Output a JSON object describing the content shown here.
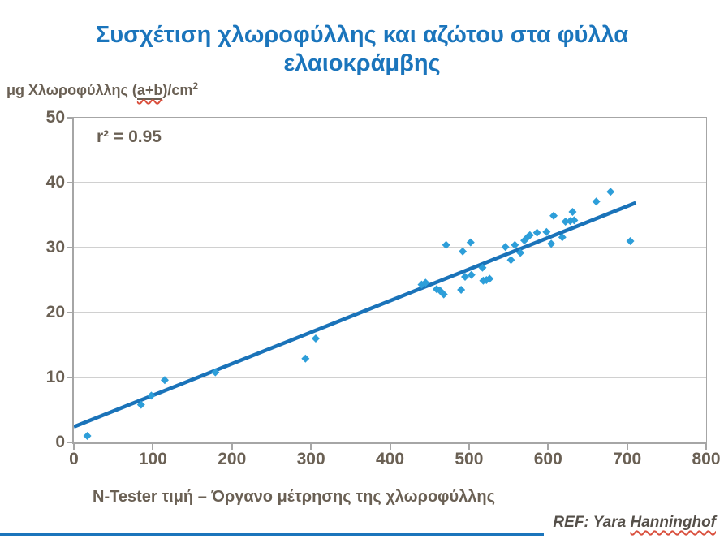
{
  "title": {
    "line1": "Συσχέτιση χλωροφύλλης και αζώτου στα φύλλα",
    "line2": "ελαιοκράμβης"
  },
  "y_axis_unit": {
    "prefix": "μg Χλωροφύλλης (",
    "underlined": "a+b",
    "suffix": ")/cm",
    "superscript": "2"
  },
  "annotation": {
    "r_squared": "r² = 0.95"
  },
  "x_axis_title": "N-Tester τιμή – Όργανο μέτρησης της χλωροφύλλης",
  "reference": {
    "prefix": "REF: Yara",
    "name": "Hanninghof"
  },
  "colors": {
    "title_blue": "#1b75bc",
    "marker_blue": "#2d9ed9",
    "trend_blue": "#1a73b9",
    "axis_text": "#6a6054",
    "gridline": "#b3b3b3",
    "plot_border": "#a6a6a6",
    "squiggle_red": "#d94f3d"
  },
  "chart_data": {
    "type": "scatter",
    "title": "Συσχέτιση χλωροφύλλης και αζώτου στα φύλλα ελαιοκράμβης",
    "xlabel": "N-Tester τιμή – Όργανο μέτρησης της χλωροφύλλης",
    "ylabel": "μg Χλωροφύλλης (a+b)/cm2",
    "xlim": [
      0,
      800
    ],
    "ylim": [
      0,
      50
    ],
    "x_ticks": [
      0,
      100,
      200,
      300,
      400,
      500,
      600,
      700,
      800
    ],
    "y_ticks": [
      0,
      10,
      20,
      30,
      40,
      50
    ],
    "y_gridlines": [
      10,
      20,
      30,
      40
    ],
    "grid": "horizontal",
    "legend": "none",
    "r_squared": 0.95,
    "points": [
      [
        17,
        1.0
      ],
      [
        85,
        5.8
      ],
      [
        98,
        7.2
      ],
      [
        115,
        9.6
      ],
      [
        179,
        10.8
      ],
      [
        293,
        12.9
      ],
      [
        306,
        16.0
      ],
      [
        440,
        24.3
      ],
      [
        445,
        24.6
      ],
      [
        459,
        23.6
      ],
      [
        463,
        23.4
      ],
      [
        468,
        22.8
      ],
      [
        471,
        30.4
      ],
      [
        490,
        23.5
      ],
      [
        492,
        29.4
      ],
      [
        495,
        25.5
      ],
      [
        502,
        30.8
      ],
      [
        503,
        25.8
      ],
      [
        517,
        26.9
      ],
      [
        518,
        24.9
      ],
      [
        522,
        25.0
      ],
      [
        526,
        25.2
      ],
      [
        546,
        30.1
      ],
      [
        553,
        28.1
      ],
      [
        558,
        30.4
      ],
      [
        565,
        29.2
      ],
      [
        570,
        31.1
      ],
      [
        574,
        31.6
      ],
      [
        577,
        31.9
      ],
      [
        586,
        32.3
      ],
      [
        598,
        32.4
      ],
      [
        604,
        30.6
      ],
      [
        607,
        34.9
      ],
      [
        618,
        31.6
      ],
      [
        622,
        34.0
      ],
      [
        628,
        34.1
      ],
      [
        631,
        35.5
      ],
      [
        633,
        34.2
      ],
      [
        661,
        37.1
      ],
      [
        679,
        38.6
      ],
      [
        704,
        31.0
      ]
    ],
    "trendline": {
      "x1": 0,
      "y1": 2.4,
      "x2": 711,
      "y2": 36.9
    }
  }
}
